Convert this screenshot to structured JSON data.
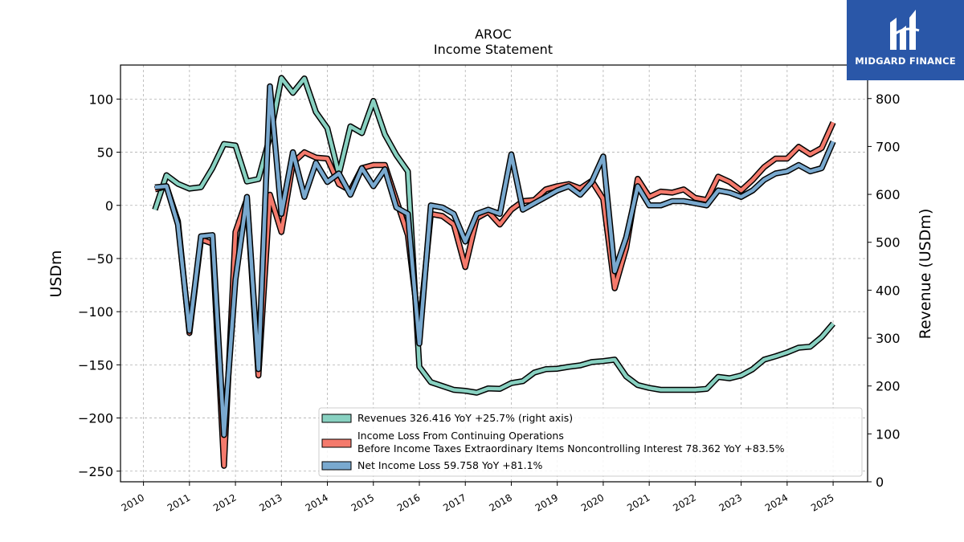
{
  "chart_data": {
    "type": "line",
    "title": "AROC",
    "subtitle": "Income Statement",
    "ylabel": "USDm",
    "ylabel_right": "Revenue (USDm)",
    "ylim": [
      -260,
      132
    ],
    "ylim_right": [
      0,
      870
    ],
    "yticks_left": [
      100,
      50,
      0,
      -50,
      -100,
      -150,
      -200,
      -250
    ],
    "ytick_labels_left": [
      "100",
      "50",
      "0",
      "−50",
      "−100",
      "−150",
      "−200",
      "−250"
    ],
    "yticks_right": [
      0,
      100,
      200,
      300,
      400,
      500,
      600,
      700,
      800
    ],
    "ytick_labels_right": [
      "0",
      "100",
      "200",
      "300",
      "400",
      "500",
      "600",
      "700",
      "800"
    ],
    "x_years": [
      "2010",
      "2011",
      "2012",
      "2013",
      "2014",
      "2015",
      "2016",
      "2017",
      "2018",
      "2019",
      "2020",
      "2021",
      "2022",
      "2023",
      "2024",
      "2025"
    ],
    "xlim": [
      2009.5,
      2025.75
    ],
    "grid": true,
    "legend_position": "lower-right",
    "series": [
      {
        "name": "Revenues  326.416 YoY +25.7% (right axis)",
        "axis": "right",
        "color": "#88d1c1",
        "x": [
          2010.25,
          2010.5,
          2010.75,
          2011.0,
          2011.25,
          2011.5,
          2011.75,
          2012.0,
          2012.25,
          2012.5,
          2012.75,
          2013.0,
          2013.25,
          2013.5,
          2013.75,
          2014.0,
          2014.25,
          2014.5,
          2014.75,
          2015.0,
          2015.25,
          2015.5,
          2015.75,
          2016.0,
          2016.25,
          2016.5,
          2016.75,
          2017.0,
          2017.25,
          2017.5,
          2017.75,
          2018.0,
          2018.25,
          2018.5,
          2018.75,
          2019.0,
          2019.25,
          2019.5,
          2019.75,
          2020.0,
          2020.25,
          2020.5,
          2020.75,
          2021.0,
          2021.25,
          2021.5,
          2021.75,
          2022.0,
          2022.25,
          2022.5,
          2022.75,
          2023.0,
          2023.25,
          2023.5,
          2023.75,
          2024.0,
          2024.25,
          2024.5,
          2024.75,
          2025.0
        ],
        "values": [
          568,
          640,
          622,
          612,
          615,
          655,
          705,
          702,
          627,
          632,
          720,
          843,
          812,
          842,
          772,
          738,
          642,
          742,
          728,
          795,
          725,
          682,
          648,
          240,
          208,
          200,
          192,
          190,
          186,
          195,
          194,
          206,
          210,
          228,
          235,
          236,
          240,
          243,
          250,
          252,
          255,
          220,
          202,
          196,
          192,
          192,
          192,
          192,
          194,
          219,
          216,
          222,
          235,
          255,
          262,
          270,
          280,
          282,
          302,
          330
        ]
      },
      {
        "name": "Income Loss From Continuing Operations Before Income Taxes Extraordinary Items Noncontrolling Interest  78.362 YoY +83.5%",
        "name_line1": "Income Loss From Continuing Operations",
        "name_line2": "Before Income Taxes Extraordinary Items Noncontrolling Interest  78.362 YoY +83.5%",
        "axis": "left",
        "color": "#f47a6c",
        "x": [
          2010.25,
          2010.5,
          2010.75,
          2011.0,
          2011.25,
          2011.5,
          2011.75,
          2012.0,
          2012.25,
          2012.5,
          2012.75,
          2013.0,
          2013.25,
          2013.5,
          2013.75,
          2014.0,
          2014.25,
          2014.5,
          2014.75,
          2015.0,
          2015.25,
          2015.5,
          2015.75,
          2016.0,
          2016.25,
          2016.5,
          2016.75,
          2017.0,
          2017.25,
          2017.5,
          2017.75,
          2018.0,
          2018.25,
          2018.5,
          2018.75,
          2019.0,
          2019.25,
          2019.5,
          2019.75,
          2020.0,
          2020.25,
          2020.5,
          2020.75,
          2021.0,
          2021.25,
          2021.5,
          2021.75,
          2022.0,
          2022.25,
          2022.5,
          2022.75,
          2023.0,
          2023.25,
          2023.5,
          2023.75,
          2024.0,
          2024.25,
          2024.5,
          2024.75,
          2025.0
        ],
        "values": [
          15,
          18,
          -15,
          -120,
          -32,
          -36,
          -245,
          -25,
          6,
          -160,
          10,
          -25,
          40,
          50,
          45,
          44,
          20,
          14,
          35,
          38,
          38,
          5,
          -28,
          -118,
          -8,
          -10,
          -18,
          -58,
          -12,
          -6,
          -18,
          -4,
          4,
          5,
          15,
          18,
          20,
          16,
          23,
          6,
          -78,
          -40,
          25,
          8,
          13,
          12,
          15,
          7,
          5,
          27,
          22,
          14,
          24,
          36,
          44,
          44,
          55,
          48,
          54,
          78
        ]
      },
      {
        "name": "Net Income Loss  59.758 YoY +81.1%",
        "axis": "left",
        "color": "#79a9cf",
        "x": [
          2010.25,
          2010.5,
          2010.75,
          2011.0,
          2011.25,
          2011.5,
          2011.75,
          2012.0,
          2012.25,
          2012.5,
          2012.75,
          2013.0,
          2013.25,
          2013.5,
          2013.75,
          2014.0,
          2014.25,
          2014.5,
          2014.75,
          2015.0,
          2015.25,
          2015.5,
          2015.75,
          2016.0,
          2016.25,
          2016.5,
          2016.75,
          2017.0,
          2017.25,
          2017.5,
          2017.75,
          2018.0,
          2018.25,
          2018.5,
          2018.75,
          2019.0,
          2019.25,
          2019.5,
          2019.75,
          2020.0,
          2020.25,
          2020.5,
          2020.75,
          2021.0,
          2021.25,
          2021.5,
          2021.75,
          2022.0,
          2022.25,
          2022.5,
          2022.75,
          2023.0,
          2023.25,
          2023.5,
          2023.75,
          2024.0,
          2024.25,
          2024.5,
          2024.75,
          2025.0
        ],
        "values": [
          17,
          18,
          -18,
          -118,
          -29,
          -28,
          -216,
          -70,
          8,
          -154,
          112,
          -8,
          50,
          8,
          40,
          22,
          30,
          10,
          35,
          18,
          34,
          -2,
          -8,
          -130,
          0,
          -2,
          -8,
          -34,
          -8,
          -4,
          -8,
          48,
          -4,
          2,
          8,
          14,
          18,
          10,
          22,
          46,
          -62,
          -30,
          18,
          0,
          0,
          4,
          4,
          2,
          0,
          14,
          12,
          8,
          14,
          24,
          30,
          32,
          38,
          32,
          35,
          60
        ]
      }
    ]
  },
  "logo": {
    "text": "MIDGARD FINANCE"
  }
}
